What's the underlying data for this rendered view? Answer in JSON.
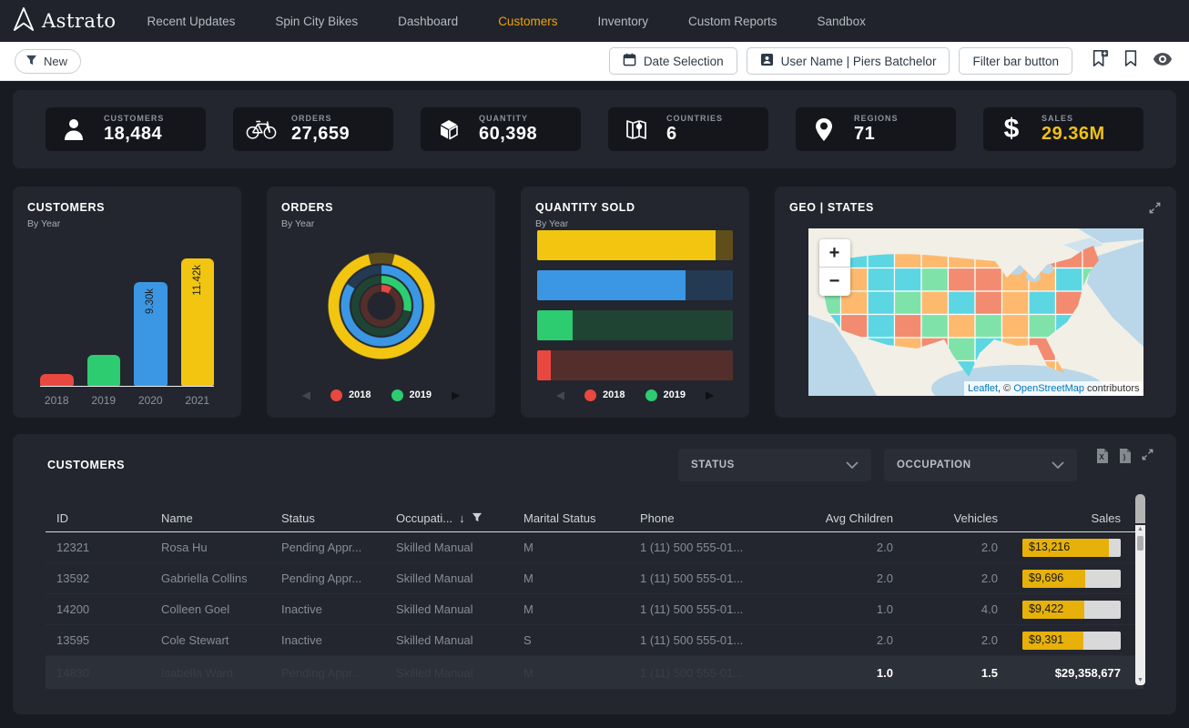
{
  "nav": {
    "brand": "Astrato",
    "items": [
      {
        "label": "Recent Updates",
        "active": false
      },
      {
        "label": "Spin City Bikes",
        "active": false
      },
      {
        "label": "Dashboard",
        "active": false
      },
      {
        "label": "Customers",
        "active": true
      },
      {
        "label": "Inventory",
        "active": false
      },
      {
        "label": "Custom Reports",
        "active": false
      },
      {
        "label": "Sandbox",
        "active": false
      }
    ]
  },
  "toolbar": {
    "new_label": "New",
    "date_button": "Date Selection",
    "user_button": "User Name | Piers Batchelor",
    "filter_bar_button": "Filter bar button",
    "icons": [
      "bookmark-add-icon",
      "bookmark-icon",
      "eye-icon"
    ]
  },
  "kpis": [
    {
      "icon": "person-icon",
      "label": "CUSTOMERS",
      "value": "18,484",
      "value_color": "#ffffff"
    },
    {
      "icon": "bicycle-icon",
      "label": "ORDERS",
      "value": "27,659",
      "value_color": "#ffffff"
    },
    {
      "icon": "package-icon",
      "label": "QUANTITY",
      "value": "60,398",
      "value_color": "#ffffff"
    },
    {
      "icon": "map-icon",
      "label": "COUNTRIES",
      "value": "6",
      "value_color": "#ffffff"
    },
    {
      "icon": "pin-icon",
      "label": "REGIONS",
      "value": "71",
      "value_color": "#ffffff"
    },
    {
      "icon": "dollar-icon",
      "label": "SALES",
      "value": "29.36M",
      "value_color": "#f2c017"
    }
  ],
  "legend": {
    "years": [
      {
        "label": "2018",
        "color": "#e8483f"
      },
      {
        "label": "2019",
        "color": "#2dcc70"
      }
    ]
  },
  "chart_data": [
    {
      "type": "bar",
      "title": "CUSTOMERS",
      "subtitle": "By Year",
      "categories": [
        "2018",
        "2019",
        "2020",
        "2021"
      ],
      "values": [
        1100,
        2750,
        9300,
        11420
      ],
      "bar_labels": [
        "",
        "",
        "9.30k",
        "11.42k"
      ],
      "colors": [
        "#e8483f",
        "#2dcc70",
        "#3b97e3",
        "#f2c511"
      ],
      "ylim": [
        0,
        11420
      ]
    },
    {
      "type": "donut",
      "title": "ORDERS",
      "subtitle": "By Year",
      "rings": [
        {
          "year": "2021",
          "color": "#f2c511",
          "dim": "#5d4e1b",
          "pct": 92
        },
        {
          "year": "2020",
          "color": "#3b97e3",
          "dim": "#243a52",
          "pct": 84
        },
        {
          "year": "2019",
          "color": "#2dcc70",
          "dim": "#1f4433",
          "pct": 28
        },
        {
          "year": "2018",
          "color": "#e8483f",
          "dim": "#542e2b",
          "pct": 8
        }
      ]
    },
    {
      "type": "hbar",
      "title": "QUANTITY SOLD",
      "subtitle": "By Year",
      "bars": [
        {
          "year": "2021",
          "color": "#f2c511",
          "dim": "#5d4e1b",
          "pct": 91
        },
        {
          "year": "2020",
          "color": "#3b97e3",
          "dim": "#243a52",
          "pct": 76
        },
        {
          "year": "2019",
          "color": "#2dcc70",
          "dim": "#1f4433",
          "pct": 18
        },
        {
          "year": "2018",
          "color": "#e8483f",
          "dim": "#542e2b",
          "pct": 7
        }
      ]
    },
    {
      "type": "map",
      "title": "GEO | STATES",
      "palette": [
        "#f28b70",
        "#fdb96d",
        "#5bd6e2",
        "#7fe3a9"
      ],
      "zoom_in": "+",
      "zoom_out": "−",
      "attribution": {
        "leaflet": "Leaflet",
        "sep": ", © ",
        "osm": "OpenStreetMap",
        "rest": " contributors"
      }
    }
  ],
  "table": {
    "title": "CUSTOMERS",
    "filters": [
      {
        "label": "STATUS"
      },
      {
        "label": "OCCUPATION"
      }
    ],
    "columns": [
      {
        "label": "ID"
      },
      {
        "label": "Name"
      },
      {
        "label": "Status"
      },
      {
        "label": "Occupati...",
        "sort": "↓",
        "filter": true
      },
      {
        "label": "Marital Status"
      },
      {
        "label": "Phone"
      },
      {
        "label": "Avg Children",
        "align": "right"
      },
      {
        "label": "Vehicles",
        "align": "right"
      },
      {
        "label": "Sales",
        "align": "right"
      }
    ],
    "rows": [
      {
        "id": "12321",
        "name": "Rosa Hu",
        "status": "Pending Appr...",
        "occupation": "Skilled Manual",
        "marital": "M",
        "phone": "1 (11) 500 555-01...",
        "avg_children": "2.0",
        "vehicles": "2.0",
        "sales": "$13,216",
        "sales_pct": 88
      },
      {
        "id": "13592",
        "name": "Gabriella Collins",
        "status": "Pending Appr...",
        "occupation": "Skilled Manual",
        "marital": "M",
        "phone": "1 (11) 500 555-01...",
        "avg_children": "2.0",
        "vehicles": "2.0",
        "sales": "$9,696",
        "sales_pct": 64
      },
      {
        "id": "14200",
        "name": "Colleen Goel",
        "status": "Inactive",
        "occupation": "Skilled Manual",
        "marital": "M",
        "phone": "1 (11) 500 555-01...",
        "avg_children": "1.0",
        "vehicles": "4.0",
        "sales": "$9,422",
        "sales_pct": 63
      },
      {
        "id": "13595",
        "name": "Cole Stewart",
        "status": "Inactive",
        "occupation": "Skilled Manual",
        "marital": "S",
        "phone": "1 (11) 500 555-01...",
        "avg_children": "2.0",
        "vehicles": "2.0",
        "sales": "$9,391",
        "sales_pct": 62
      }
    ],
    "ghost_row": {
      "id": "14830",
      "name": "Isabella Ward",
      "status": "Pending Appr...",
      "occupation": "Skilled Manual",
      "marital": "M",
      "phone": "1 (11) 500 555-01..."
    },
    "totals": {
      "avg_children": "1.0",
      "vehicles": "1.5",
      "sales": "$29,358,677"
    }
  }
}
